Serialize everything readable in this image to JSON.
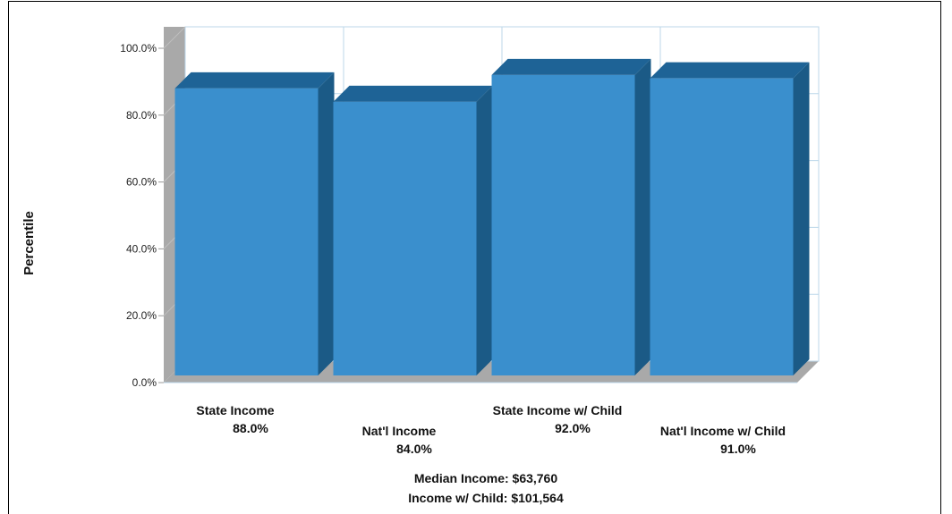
{
  "chart_data": {
    "type": "bar",
    "ylabel": "Percentile",
    "ylim": [
      0,
      100
    ],
    "yticks": [
      "0.0%",
      "20.0%",
      "40.0%",
      "60.0%",
      "80.0%",
      "100.0%"
    ],
    "categories": [
      "State Income",
      "Nat'l Income",
      "State Income w/ Child",
      "Nat'l Income w/ Child"
    ],
    "value_labels": [
      "88.0%",
      "84.0%",
      "92.0%",
      "91.0%"
    ],
    "values": [
      88,
      84,
      92,
      91
    ],
    "grid": true,
    "legend": "none",
    "style": "3d",
    "colors": {
      "bar_front": "#3a8fcd",
      "bar_side": "#1b5a86",
      "bar_top": "#1e6396",
      "wall": "#a9a9a9",
      "grid": "#bcd7ea"
    },
    "annotations": [
      "Median Income: $63,760",
      "Income w/ Child: $101,564"
    ]
  }
}
